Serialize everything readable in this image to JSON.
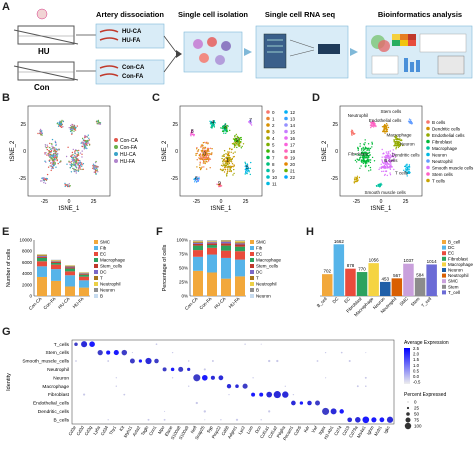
{
  "panels": {
    "A": "A",
    "B": "B",
    "C": "C",
    "D": "D",
    "E": "E",
    "F": "F",
    "G": "G",
    "H": "H"
  },
  "workflow": {
    "groups": [
      "HU",
      "Con"
    ],
    "samples_hu": [
      "HU-CA",
      "HU-FA"
    ],
    "samples_con": [
      "Con-CA",
      "Con-FA"
    ],
    "steps": [
      "Artery dissociation",
      "Single cell isolation",
      "Single cell RNA seq",
      "Bioinformatics analysis"
    ]
  },
  "tsne_axes": {
    "x": "tSNE_1",
    "y": "tSNE_2",
    "xticks": [
      "-25",
      "0",
      "25"
    ],
    "yticks": [
      "25",
      "0",
      "-25"
    ]
  },
  "panel_b_legend": [
    "Con-CA",
    "Con-FA",
    "HU-CA",
    "HU-FA"
  ],
  "panel_b_colors": [
    "#e2574c",
    "#6ab04c",
    "#3aa3c8",
    "#b084cc"
  ],
  "panel_c_clusters": [
    "0",
    "1",
    "2",
    "3",
    "4",
    "5",
    "6",
    "7",
    "8",
    "9",
    "10",
    "11",
    "12",
    "13",
    "14",
    "15",
    "16",
    "17",
    "18",
    "19",
    "20",
    "21",
    "22"
  ],
  "panel_c_colors": [
    "#f8766d",
    "#ea8331",
    "#d89000",
    "#c09b00",
    "#a3a500",
    "#7cae00",
    "#39b600",
    "#00bb4e",
    "#00bf7d",
    "#00c1a3",
    "#00bfc4",
    "#00bae0",
    "#00b0f6",
    "#35a2ff",
    "#9590ff",
    "#c77cff",
    "#e76bf3",
    "#fa62db",
    "#ff62bc",
    "#ff6c91",
    "#e58700",
    "#6bb100",
    "#00a9ff"
  ],
  "panel_d_types": [
    "B cells",
    "Dendritic cells",
    "Endothelial cells",
    "Fibroblast",
    "Macrophage",
    "Neuron",
    "Neutrophil",
    "Smooth muscle cells",
    "Stem cells",
    "T cells"
  ],
  "panel_d_colors": [
    "#f8766d",
    "#d39200",
    "#93aa00",
    "#00ba38",
    "#00c19f",
    "#00b9e3",
    "#619cff",
    "#db72fb",
    "#ff61c3",
    "#c8a400"
  ],
  "panel_d_labels": [
    "Neutrophil",
    "Stem cells",
    "Endothelial cells",
    "Fibroblast",
    "B cells",
    "Macrophage",
    "Neuron",
    "Dendritic cells",
    "T cells",
    "Smooth muscle cells"
  ],
  "panel_e": {
    "ylabel": "Number of cells",
    "yticks": [
      "0",
      "2000",
      "4000",
      "6000",
      "8000",
      "10000"
    ],
    "legend": [
      "SMC",
      "Fib",
      "EC",
      "Macrophage",
      "Stem_cells",
      "DC",
      "T",
      "Neutrophil",
      "Neuron",
      "B"
    ]
  },
  "panel_f": {
    "ylabel": "Percentage of cells",
    "yticks": [
      "0%",
      "25%",
      "50%",
      "75%",
      "100%"
    ],
    "legend": [
      "SMC",
      "Fib",
      "EC",
      "Macrophage",
      "Stem_cells",
      "DC",
      "T",
      "Neutrophil",
      "B",
      "Neuron"
    ]
  },
  "stack_colors": [
    "#f2a83b",
    "#56b4e9",
    "#e94b3c",
    "#2ca25f",
    "#c0392b",
    "#7b68c8",
    "#a6761d",
    "#ecd047",
    "#8e8e8e",
    "#c6dbef"
  ],
  "chart_data": [
    {
      "type": "bar",
      "title": "",
      "ylabel": "Number of cells",
      "ylim": [
        0,
        10000
      ],
      "categories": [
        "Con-CA",
        "Con-FA",
        "HU-CA",
        "HU-FA"
      ],
      "series": [
        {
          "name": "SMC",
          "values": [
            3400,
            2700,
            1700,
            1500
          ]
        },
        {
          "name": "Fib",
          "values": [
            1900,
            2100,
            2000,
            1300
          ]
        },
        {
          "name": "EC",
          "values": [
            900,
            800,
            700,
            650
          ]
        },
        {
          "name": "Macrophage",
          "values": [
            600,
            300,
            500,
            350
          ]
        },
        {
          "name": "Stem_cells",
          "values": [
            200,
            200,
            200,
            150
          ]
        },
        {
          "name": "DC",
          "values": [
            150,
            100,
            150,
            100
          ]
        },
        {
          "name": "T",
          "values": [
            150,
            100,
            100,
            100
          ]
        },
        {
          "name": "Neutrophil",
          "values": [
            100,
            100,
            100,
            80
          ]
        },
        {
          "name": "Neuron",
          "values": [
            50,
            60,
            40,
            30
          ]
        },
        {
          "name": "B",
          "values": [
            50,
            40,
            40,
            30
          ]
        }
      ]
    },
    {
      "type": "bar",
      "title": "",
      "ylabel": "Percentage of cells",
      "ylim": [
        0,
        100
      ],
      "categories": [
        "Con-CA",
        "Con-FA",
        "HU-CA",
        "HU-FA"
      ],
      "series": [
        {
          "name": "SMC",
          "values": [
            45,
            42,
            31,
            35
          ]
        },
        {
          "name": "Fib",
          "values": [
            25,
            32,
            37,
            30
          ]
        },
        {
          "name": "EC",
          "values": [
            12,
            12,
            13,
            15
          ]
        },
        {
          "name": "Macrophage",
          "values": [
            8,
            5,
            9,
            8
          ]
        },
        {
          "name": "Stem_cells",
          "values": [
            3,
            3,
            4,
            4
          ]
        },
        {
          "name": "DC",
          "values": [
            2,
            2,
            3,
            2
          ]
        },
        {
          "name": "T",
          "values": [
            2,
            1,
            1,
            2
          ]
        },
        {
          "name": "Neutrophil",
          "values": [
            1,
            1,
            1,
            2
          ]
        },
        {
          "name": "B",
          "values": [
            1,
            1,
            1,
            1
          ]
        },
        {
          "name": "Neuron",
          "values": [
            1,
            1,
            0,
            1
          ]
        }
      ]
    },
    {
      "type": "bar",
      "title": "",
      "categories": [
        "B_cell",
        "DC",
        "EC",
        "Fibroblast",
        "Macrophage",
        "Neuron",
        "Neutrophil",
        "SMC",
        "Stem",
        "T_cell"
      ],
      "values": [
        702,
        1662,
        878,
        770,
        1056,
        453,
        567,
        1037,
        584,
        1014
      ],
      "labels": [
        "702",
        "1662",
        "878",
        "770",
        "1056",
        "453",
        "567",
        "1037",
        "584",
        "1014"
      ],
      "colors": [
        "#f2a83b",
        "#56b4e9",
        "#e94b3c",
        "#2ca25f",
        "#f5d442",
        "#1f5fa8",
        "#d95f02",
        "#c9a0dc",
        "#8c8c8c",
        "#6b6bd6"
      ],
      "legend": [
        "B_cell",
        "DC",
        "EC",
        "Fibroblast",
        "Macrophage",
        "Neuron",
        "Neutrophil",
        "SMC",
        "Stem",
        "T_cell"
      ],
      "ylim": [
        0,
        1800
      ]
    }
  ],
  "panel_g": {
    "ylabel": "Identity",
    "rows": [
      "T_cells",
      "Stem_cells",
      "Smooth_muscle_cells",
      "Neutrophil",
      "Neuron",
      "Macrophage",
      "Fibroblast",
      "Endothelial_cells",
      "Dendritic_cells",
      "B_cells"
    ],
    "genes": [
      "Cd3e",
      "Cd3d",
      "Cd3g",
      "Ly6a",
      "Cd34",
      "Thy1",
      "Kit",
      "Myh11",
      "Acta2",
      "Tagln",
      "Cnn1",
      "Mpo",
      "Elane",
      "S100a8",
      "S100a9",
      "Nefl",
      "Snap25",
      "Syp",
      "Pmp22",
      "Cd68",
      "Adgre1",
      "Lyz2",
      "Lum",
      "Dcn",
      "Col1a1",
      "Col1a2",
      "Pdgfra",
      "Pecam1",
      "Cdh5",
      "Kdr",
      "Vwf",
      "Itgax",
      "H2-Ab1",
      "Cd74",
      "Cd19",
      "Cd79a",
      "Ms4a1",
      "Ighm",
      "Mzb1",
      "Igkc"
    ],
    "legend_title_avg": "Average Expression",
    "avg_ticks": [
      "2.5",
      "2.0",
      "1.5",
      "1.0",
      "0.5",
      "0.0",
      "-0.5"
    ],
    "legend_title_pct": "Percent Expressed",
    "pct_values": [
      "0",
      "25",
      "50",
      "75",
      "100"
    ]
  }
}
